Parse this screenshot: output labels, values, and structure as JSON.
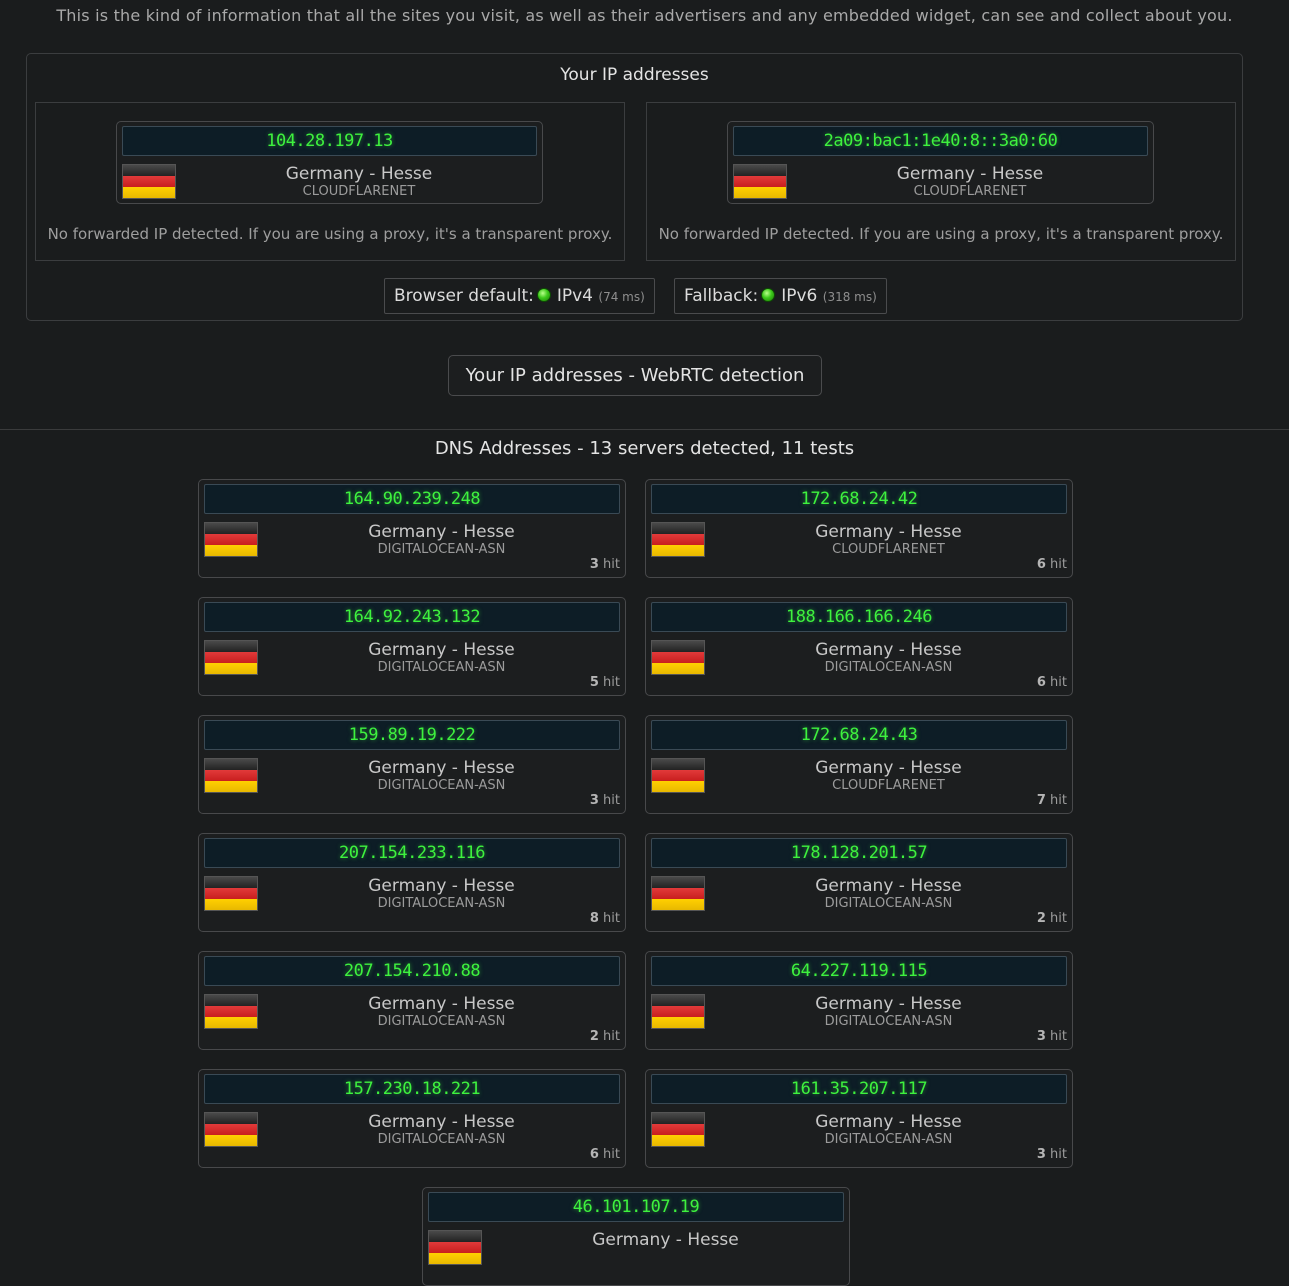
{
  "intro": "This is the kind of information that all the sites you visit, as well as their advertisers and any embedded widget, can see and collect about you.",
  "ip_section": {
    "title": "Your IP addresses",
    "ipv4": {
      "address": "104.28.197.13",
      "location": "Germany - Hesse",
      "asn": "CLOUDFLARENET",
      "forwarded": "No forwarded IP detected. If you are using a proxy, it's a transparent proxy."
    },
    "ipv6": {
      "address": "2a09:bac1:1e40:8::3a0:60",
      "location": "Germany - Hesse",
      "asn": "CLOUDFLARENET",
      "forwarded": "No forwarded IP detected. If you are using a proxy, it's a transparent proxy."
    },
    "browser_default": {
      "label": "Browser default:",
      "proto": "IPv4",
      "ms": "(74 ms)"
    },
    "fallback": {
      "label": "Fallback:",
      "proto": "IPv6",
      "ms": "(318 ms)"
    }
  },
  "webrtc_button": "Your IP addresses - WebRTC detection",
  "dns": {
    "title": "DNS Addresses - 13 servers detected, 11 tests",
    "servers": [
      {
        "address": "164.90.239.248",
        "location": "Germany - Hesse",
        "asn": "DIGITALOCEAN-ASN",
        "hits": "3",
        "hit_label": "hit"
      },
      {
        "address": "172.68.24.42",
        "location": "Germany - Hesse",
        "asn": "CLOUDFLARENET",
        "hits": "6",
        "hit_label": "hit"
      },
      {
        "address": "164.92.243.132",
        "location": "Germany - Hesse",
        "asn": "DIGITALOCEAN-ASN",
        "hits": "5",
        "hit_label": "hit"
      },
      {
        "address": "188.166.166.246",
        "location": "Germany - Hesse",
        "asn": "DIGITALOCEAN-ASN",
        "hits": "6",
        "hit_label": "hit"
      },
      {
        "address": "159.89.19.222",
        "location": "Germany - Hesse",
        "asn": "DIGITALOCEAN-ASN",
        "hits": "3",
        "hit_label": "hit"
      },
      {
        "address": "172.68.24.43",
        "location": "Germany - Hesse",
        "asn": "CLOUDFLARENET",
        "hits": "7",
        "hit_label": "hit"
      },
      {
        "address": "207.154.233.116",
        "location": "Germany - Hesse",
        "asn": "DIGITALOCEAN-ASN",
        "hits": "8",
        "hit_label": "hit"
      },
      {
        "address": "178.128.201.57",
        "location": "Germany - Hesse",
        "asn": "DIGITALOCEAN-ASN",
        "hits": "2",
        "hit_label": "hit"
      },
      {
        "address": "207.154.210.88",
        "location": "Germany - Hesse",
        "asn": "DIGITALOCEAN-ASN",
        "hits": "2",
        "hit_label": "hit"
      },
      {
        "address": "64.227.119.115",
        "location": "Germany - Hesse",
        "asn": "DIGITALOCEAN-ASN",
        "hits": "3",
        "hit_label": "hit"
      },
      {
        "address": "157.230.18.221",
        "location": "Germany - Hesse",
        "asn": "DIGITALOCEAN-ASN",
        "hits": "6",
        "hit_label": "hit"
      },
      {
        "address": "161.35.207.117",
        "location": "Germany - Hesse",
        "asn": "DIGITALOCEAN-ASN",
        "hits": "3",
        "hit_label": "hit"
      },
      {
        "address": "46.101.107.19",
        "location": "Germany - Hesse"
      }
    ]
  }
}
